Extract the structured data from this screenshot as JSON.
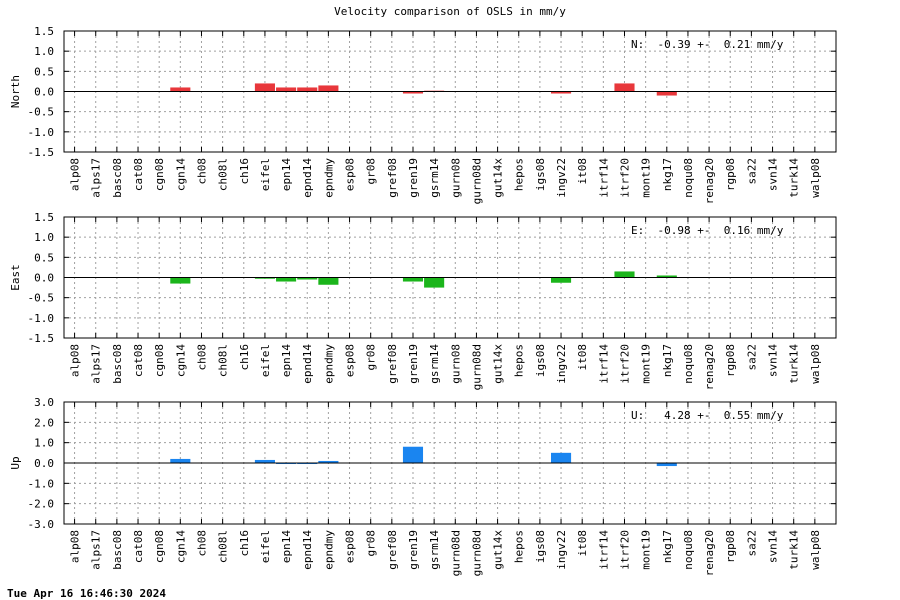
{
  "chart_data": [
    {
      "type": "bar",
      "ylabel": "North",
      "ylim": [
        -1.5,
        1.5
      ],
      "yticks": [
        "1.5",
        "1.0",
        "0.5",
        "0.0",
        "-0.5",
        "-1.0",
        "-1.5"
      ],
      "color": "#e8373b",
      "annotation": "N:  -0.39 +-  0.21 mm/y",
      "grid": true,
      "categories": [
        "alp08",
        "alps17",
        "basc08",
        "cat08",
        "cgn08",
        "cgn14",
        "ch08",
        "ch08l",
        "ch16",
        "eifel",
        "epn14",
        "epnd14",
        "epndmy",
        "esp08",
        "gr08",
        "gref08",
        "gren19",
        "gsrm14",
        "gurn08",
        "gurn08d",
        "gut14x",
        "hepos",
        "igs08",
        "ingv22",
        "it08",
        "itrf14",
        "itrf20",
        "mont19",
        "nkg17",
        "noqu08",
        "renag20",
        "rgp08",
        "sa22",
        "svn14",
        "turk14",
        "walp08"
      ],
      "values": [
        0,
        0,
        0,
        0,
        0,
        0.1,
        0,
        0,
        0,
        0.2,
        0.1,
        0.1,
        0.15,
        0,
        0,
        0,
        -0.05,
        0.02,
        0,
        0,
        0,
        0,
        0,
        -0.05,
        0,
        0,
        0.2,
        0,
        -0.1,
        0,
        0,
        0,
        0,
        0,
        0,
        0
      ]
    },
    {
      "type": "bar",
      "ylabel": "East",
      "ylim": [
        -1.5,
        1.5
      ],
      "yticks": [
        "1.5",
        "1.0",
        "0.5",
        "0.0",
        "-0.5",
        "-1.0",
        "-1.5"
      ],
      "color": "#1bb51b",
      "annotation": "E:  -0.98 +-  0.16 mm/y",
      "grid": true,
      "categories": [
        "alp08",
        "alps17",
        "basc08",
        "cat08",
        "cgn08",
        "cgn14",
        "ch08",
        "ch08l",
        "ch16",
        "eifel",
        "epn14",
        "epnd14",
        "epndmy",
        "esp08",
        "gr08",
        "gref08",
        "gren19",
        "gsrm14",
        "gurn08",
        "gurn08d",
        "gut14x",
        "hepos",
        "igs08",
        "ingv22",
        "it08",
        "itrf14",
        "itrf20",
        "mont19",
        "nkg17",
        "noqu08",
        "renag20",
        "rgp08",
        "sa22",
        "svn14",
        "turk14",
        "walp08"
      ],
      "values": [
        0,
        0,
        0,
        0,
        0,
        -0.15,
        0,
        0,
        0,
        -0.03,
        -0.1,
        -0.05,
        -0.18,
        0,
        0,
        0,
        -0.1,
        -0.25,
        0,
        0,
        0,
        0,
        0,
        -0.13,
        0,
        0,
        0.15,
        0,
        0.05,
        0,
        0,
        0,
        0,
        0,
        0,
        0
      ]
    },
    {
      "type": "bar",
      "ylabel": "Up",
      "ylim": [
        -3.0,
        3.0
      ],
      "yticks": [
        "3.0",
        "2.0",
        "1.0",
        "0.0",
        "-1.0",
        "-2.0",
        "-3.0"
      ],
      "color": "#1a85f0",
      "annotation": "U:   4.28 +-  0.55 mm/y",
      "grid": true,
      "categories": [
        "alp08",
        "alps17",
        "basc08",
        "cat08",
        "cgn08",
        "cgn14",
        "ch08",
        "ch08l",
        "ch16",
        "eifel",
        "epn14",
        "epnd14",
        "epndmy",
        "esp08",
        "gr08",
        "gref08",
        "gren19",
        "gsrm14",
        "gurn08d",
        "gurn08d",
        "gut14x",
        "hepos",
        "igs08",
        "ingv22",
        "it08",
        "itrf14",
        "itrf20",
        "mont19",
        "nkg17",
        "noqu08",
        "renag20",
        "rgp08",
        "sa22",
        "svn14",
        "turk14",
        "walp08"
      ],
      "values": [
        0,
        0,
        0,
        0,
        0,
        0.2,
        0,
        0,
        0,
        0.15,
        -0.05,
        -0.05,
        0.1,
        0,
        0,
        0,
        0.8,
        0,
        0,
        0,
        0,
        0,
        0,
        0.5,
        0,
        0,
        0,
        0,
        -0.15,
        0,
        0,
        0,
        0,
        0,
        0,
        0
      ]
    }
  ],
  "title": "Velocity comparison of OSLS in mm/y",
  "timestamp": "Tue Apr 16 16:46:30 2024"
}
